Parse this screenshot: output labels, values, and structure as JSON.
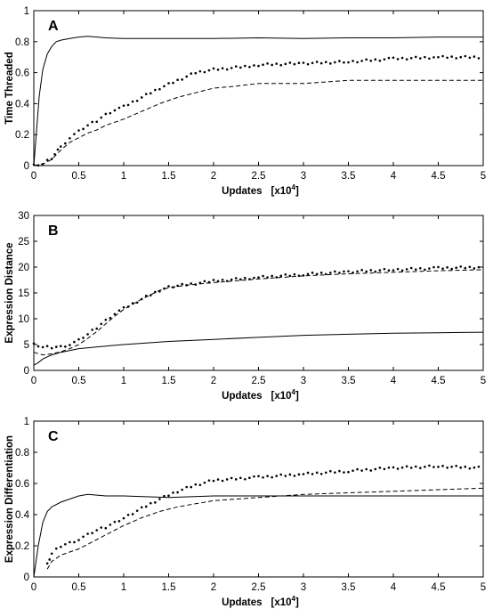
{
  "chart_data": [
    {
      "type": "line",
      "panel_label": "A",
      "ylabel": "Time Threaded",
      "xlabel": "Updates",
      "xlabel_unit": "[x10",
      "xlabel_exp": "4",
      "xlabel_close": "]",
      "xlim": [
        0,
        5
      ],
      "ylim": [
        0,
        1
      ],
      "xticks": [
        "0",
        "0.5",
        "1",
        "1.5",
        "2",
        "2.5",
        "3",
        "3.5",
        "4",
        "4.5",
        "5"
      ],
      "yticks": [
        "0",
        "0.2",
        "0.4",
        "0.6",
        "0.8",
        "1"
      ],
      "grid": false,
      "series": [
        {
          "style": "solid",
          "x": [
            0,
            0.03,
            0.06,
            0.1,
            0.15,
            0.2,
            0.25,
            0.3,
            0.4,
            0.5,
            0.6,
            0.8,
            1.0,
            1.5,
            2.0,
            2.5,
            3.0,
            3.5,
            4.0,
            4.5,
            5.0
          ],
          "y": [
            0.0,
            0.22,
            0.45,
            0.62,
            0.72,
            0.77,
            0.8,
            0.81,
            0.82,
            0.83,
            0.835,
            0.825,
            0.82,
            0.82,
            0.82,
            0.825,
            0.82,
            0.825,
            0.825,
            0.83,
            0.83
          ]
        },
        {
          "style": "dotted",
          "x": [
            0,
            0.1,
            0.2,
            0.3,
            0.4,
            0.5,
            0.6,
            0.7,
            0.8,
            0.9,
            1.0,
            1.2,
            1.4,
            1.6,
            1.8,
            2.0,
            2.2,
            2.5,
            3.0,
            3.5,
            4.0,
            4.5,
            5.0
          ],
          "y": [
            0.0,
            0.01,
            0.05,
            0.12,
            0.18,
            0.22,
            0.26,
            0.29,
            0.33,
            0.36,
            0.38,
            0.44,
            0.5,
            0.55,
            0.6,
            0.62,
            0.63,
            0.65,
            0.66,
            0.67,
            0.69,
            0.7,
            0.7
          ]
        },
        {
          "style": "dashed",
          "x": [
            0,
            0.1,
            0.2,
            0.3,
            0.4,
            0.5,
            0.6,
            0.7,
            0.8,
            0.9,
            1.0,
            1.2,
            1.4,
            1.6,
            1.8,
            2.0,
            2.2,
            2.5,
            3.0,
            3.5,
            4.0,
            4.5,
            5.0
          ],
          "y": [
            0.0,
            0.01,
            0.04,
            0.1,
            0.15,
            0.18,
            0.21,
            0.23,
            0.26,
            0.28,
            0.3,
            0.35,
            0.4,
            0.44,
            0.47,
            0.5,
            0.51,
            0.53,
            0.53,
            0.55,
            0.55,
            0.55,
            0.55
          ]
        }
      ]
    },
    {
      "type": "line",
      "panel_label": "B",
      "ylabel": "Expression Distance",
      "xlabel": "Updates",
      "xlabel_unit": "[x10",
      "xlabel_exp": "4",
      "xlabel_close": "]",
      "xlim": [
        0,
        5
      ],
      "ylim": [
        0,
        30
      ],
      "xticks": [
        "0",
        "0.5",
        "1",
        "1.5",
        "2",
        "2.5",
        "3",
        "3.5",
        "4",
        "4.5",
        "5"
      ],
      "yticks": [
        "0",
        "5",
        "10",
        "15",
        "20",
        "25",
        "30"
      ],
      "grid": false,
      "series": [
        {
          "style": "solid",
          "x": [
            0,
            0.05,
            0.1,
            0.2,
            0.3,
            0.5,
            0.8,
            1.0,
            1.5,
            2.0,
            2.5,
            3.0,
            3.5,
            4.0,
            4.5,
            5.0
          ],
          "y": [
            1.0,
            1.5,
            2.2,
            3.0,
            3.5,
            4.2,
            4.7,
            5.0,
            5.6,
            6.0,
            6.4,
            6.8,
            7.0,
            7.2,
            7.3,
            7.4
          ]
        },
        {
          "style": "dotted",
          "x": [
            0,
            0.1,
            0.2,
            0.3,
            0.4,
            0.5,
            0.6,
            0.7,
            0.8,
            0.9,
            1.0,
            1.2,
            1.4,
            1.5,
            1.7,
            2.0,
            2.5,
            3.0,
            3.5,
            4.0,
            4.5,
            5.0
          ],
          "y": [
            5.0,
            4.5,
            4.5,
            4.6,
            5.0,
            5.8,
            7.0,
            8.3,
            9.7,
            11.0,
            12.0,
            13.8,
            15.5,
            16.2,
            16.6,
            17.3,
            18.0,
            18.6,
            19.1,
            19.5,
            19.8,
            20.0
          ]
        },
        {
          "style": "dashed",
          "x": [
            0,
            0.1,
            0.2,
            0.3,
            0.4,
            0.5,
            0.6,
            0.7,
            0.8,
            0.9,
            1.0,
            1.2,
            1.4,
            1.5,
            1.7,
            2.0,
            2.5,
            3.0,
            3.5,
            4.0,
            4.5,
            5.0
          ],
          "y": [
            3.5,
            3.0,
            3.2,
            3.6,
            4.2,
            5.0,
            6.2,
            7.5,
            9.0,
            10.5,
            11.8,
            13.8,
            15.5,
            16.0,
            16.5,
            17.0,
            17.7,
            18.3,
            18.7,
            19.0,
            19.3,
            19.5
          ]
        }
      ]
    },
    {
      "type": "line",
      "panel_label": "C",
      "ylabel": "Expression Differentiation",
      "xlabel": "Updates",
      "xlabel_unit": "[x10",
      "xlabel_exp": "4",
      "xlabel_close": "]",
      "xlim": [
        0,
        5
      ],
      "ylim": [
        0,
        1
      ],
      "xticks": [
        "0",
        "0.5",
        "1",
        "1.5",
        "2",
        "2.5",
        "3",
        "3.5",
        "4",
        "4.5",
        "5"
      ],
      "yticks": [
        "0",
        "0.2",
        "0.4",
        "0.6",
        "0.8",
        "1"
      ],
      "grid": false,
      "series": [
        {
          "style": "solid",
          "x": [
            0,
            0.05,
            0.1,
            0.15,
            0.2,
            0.3,
            0.4,
            0.5,
            0.6,
            0.8,
            1.0,
            1.5,
            2.0,
            2.5,
            3.0,
            3.5,
            4.0,
            4.5,
            5.0
          ],
          "y": [
            0.0,
            0.2,
            0.35,
            0.42,
            0.45,
            0.48,
            0.5,
            0.52,
            0.53,
            0.52,
            0.52,
            0.51,
            0.52,
            0.52,
            0.52,
            0.52,
            0.52,
            0.52,
            0.52
          ]
        },
        {
          "style": "dotted",
          "x": [
            0.15,
            0.2,
            0.3,
            0.4,
            0.5,
            0.6,
            0.7,
            0.8,
            0.9,
            1.0,
            1.2,
            1.4,
            1.6,
            1.8,
            2.0,
            2.5,
            3.0,
            3.5,
            4.0,
            4.5,
            5.0
          ],
          "y": [
            0.08,
            0.15,
            0.2,
            0.22,
            0.24,
            0.27,
            0.3,
            0.32,
            0.35,
            0.38,
            0.44,
            0.5,
            0.55,
            0.59,
            0.62,
            0.64,
            0.66,
            0.68,
            0.7,
            0.71,
            0.7
          ]
        },
        {
          "style": "dashed",
          "x": [
            0.15,
            0.2,
            0.3,
            0.4,
            0.5,
            0.6,
            0.7,
            0.8,
            0.9,
            1.0,
            1.2,
            1.4,
            1.6,
            1.8,
            2.0,
            2.5,
            3.0,
            3.5,
            4.0,
            4.5,
            5.0
          ],
          "y": [
            0.05,
            0.1,
            0.14,
            0.16,
            0.18,
            0.21,
            0.24,
            0.27,
            0.3,
            0.33,
            0.38,
            0.42,
            0.45,
            0.47,
            0.49,
            0.51,
            0.53,
            0.54,
            0.55,
            0.56,
            0.57
          ]
        }
      ]
    }
  ]
}
